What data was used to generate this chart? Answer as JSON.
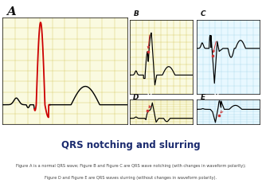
{
  "title": "QRS notching and slurring",
  "caption_line1": "Figure A is a normal QRS wave; Figure B and Figure C are QRS wave notching (with changes in waveform polarity);",
  "caption_line2": "Figure D and Figure E are QRS waves slurring (without changes in waveform polarity).",
  "hdr_gold": "#8B7D2A",
  "hdr_blue": "#4BAFC5",
  "panel_bg_gold": "#FAFAE0",
  "panel_bg_blue": "#E8F8FF",
  "grid_gold": "#D4C85A",
  "grid_blue": "#A8D8EA",
  "title_color": "#1a2a6e",
  "caption_color": "#444444"
}
